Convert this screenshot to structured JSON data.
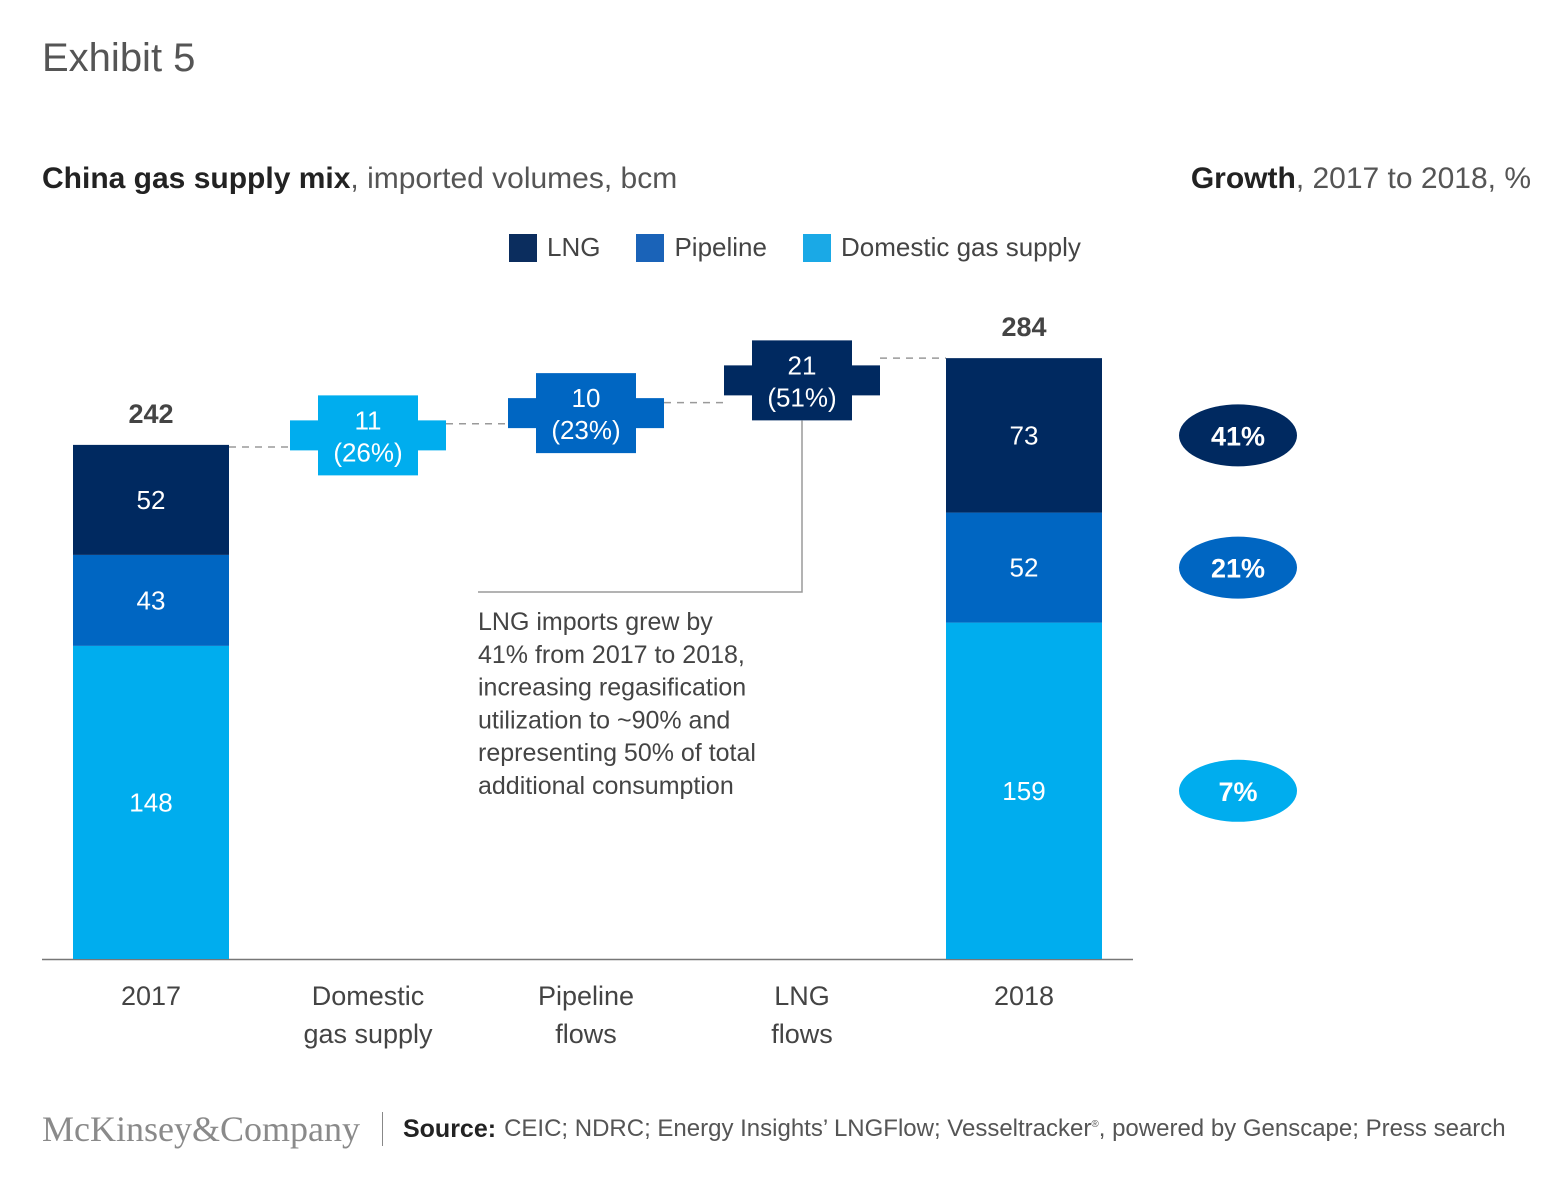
{
  "exhibit": "Exhibit 5",
  "title": {
    "bold": "China gas supply mix",
    "rest": ", imported volumes, bcm"
  },
  "growth_title": {
    "bold": "Growth",
    "rest": ", 2017 to 2018, %"
  },
  "colors": {
    "lng": "#0b2d5e",
    "pipeline": "#1a63b8",
    "domestic": "#1aa9e6",
    "bar_lng": "#002960",
    "bar_pipeline": "#0066c2",
    "bar_domestic": "#00adee"
  },
  "legend": [
    {
      "label": "LNG",
      "color": "#0b2d5e"
    },
    {
      "label": "Pipeline",
      "color": "#1a63b8"
    },
    {
      "label": "Domestic gas supply",
      "color": "#1aa9e6"
    }
  ],
  "chart_data": {
    "type": "waterfall",
    "unit": "bcm",
    "categories": [
      "2017",
      "Domestic gas supply",
      "Pipeline flows",
      "LNG flows",
      "2018"
    ],
    "category_lines": [
      [
        "2017"
      ],
      [
        "Domestic",
        "gas supply"
      ],
      [
        "Pipeline",
        "flows"
      ],
      [
        "LNG",
        "flows"
      ],
      [
        "2018"
      ]
    ],
    "start": {
      "label": "2017",
      "total": 242,
      "stack": [
        {
          "name": "Domestic gas supply",
          "value": 148
        },
        {
          "name": "Pipeline",
          "value": 43
        },
        {
          "name": "LNG",
          "value": 52
        }
      ]
    },
    "steps": [
      {
        "name": "Domestic gas supply",
        "value": 11,
        "share": "(26%)"
      },
      {
        "name": "Pipeline",
        "value": 10,
        "share": "(23%)"
      },
      {
        "name": "LNG",
        "value": 21,
        "share": "(51%)"
      }
    ],
    "end": {
      "label": "2018",
      "total": 284,
      "stack": [
        {
          "name": "Domestic gas supply",
          "value": 159
        },
        {
          "name": "Pipeline",
          "value": 52
        },
        {
          "name": "LNG",
          "value": 73
        }
      ]
    },
    "growth": [
      {
        "name": "LNG",
        "value": "41%"
      },
      {
        "name": "Pipeline",
        "value": "21%"
      },
      {
        "name": "Domestic gas supply",
        "value": "7%"
      }
    ],
    "annotation": [
      "LNG imports grew by",
      "41% from 2017 to 2018,",
      "increasing regasification",
      "utilization to ~90% and",
      "representing 50% of total",
      "additional consumption"
    ]
  },
  "footer": {
    "logo": "McKinsey&Company",
    "source_label": "Source:",
    "source_text_a": "CEIC; NDRC; Energy Insights’ LNGFlow; Vesseltracker",
    "source_reg": "®",
    "source_text_b": ", powered by Genscape; Press search"
  }
}
